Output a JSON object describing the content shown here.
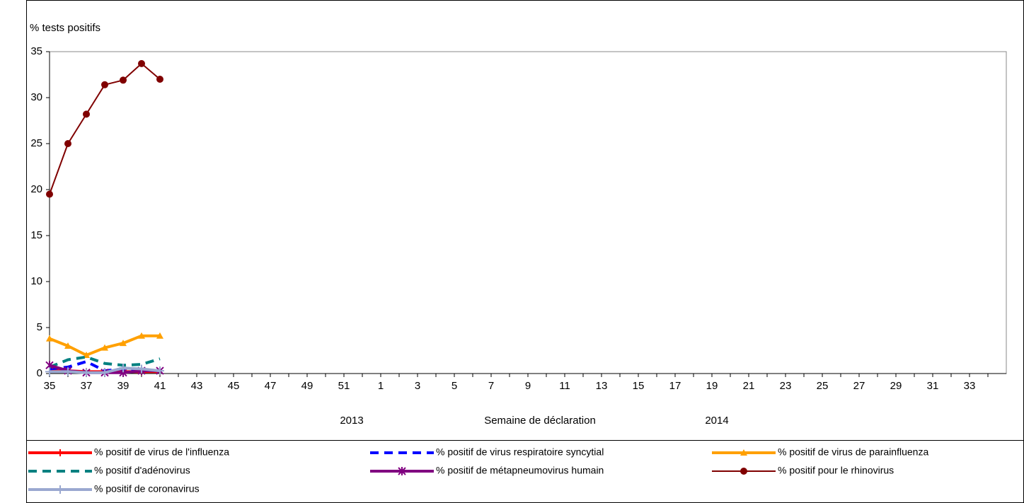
{
  "chart_data": {
    "type": "line",
    "title": "% tests positifs",
    "x_label": "Semaine de déclaration",
    "annotations": [
      "2013",
      "2014"
    ],
    "categories": [
      "35",
      null,
      "37",
      null,
      "39",
      null,
      "41",
      null,
      "43",
      null,
      "45",
      null,
      "47",
      null,
      "49",
      null,
      "51",
      null,
      "1",
      null,
      "3",
      null,
      "5",
      null,
      "7",
      null,
      "9",
      null,
      "11",
      null,
      "13",
      null,
      "15",
      null,
      "17",
      null,
      "19",
      null,
      "21",
      null,
      "23",
      null,
      "25",
      null,
      "27",
      null,
      "29",
      null,
      "31",
      null,
      "33",
      null
    ],
    "ylim": [
      0,
      35
    ],
    "yticks": [
      0,
      5,
      10,
      15,
      20,
      25,
      30,
      35
    ],
    "series": [
      {
        "name": "% positif de virus de l'influenza",
        "color": "#ff0000",
        "dashed": false,
        "marker": "dash",
        "line_width": 4,
        "values": [
          0.3,
          0.3,
          0.2,
          0.2,
          0.2,
          0.2,
          0.2,
          null,
          null,
          null,
          null,
          null,
          null,
          null,
          null,
          null,
          null,
          null,
          null,
          null,
          null,
          null,
          null,
          null,
          null,
          null,
          null,
          null,
          null,
          null,
          null,
          null,
          null,
          null,
          null,
          null,
          null,
          null,
          null,
          null,
          null,
          null,
          null,
          null,
          null,
          null,
          null,
          null,
          null,
          null,
          null,
          null
        ]
      },
      {
        "name": "% positif de virus respiratoire syncytial",
        "color": "#0000ff",
        "dashed": true,
        "marker": "none",
        "line_width": 4,
        "values": [
          0.5,
          0.7,
          1.3,
          0.3,
          0.5,
          0.4,
          0.3,
          null,
          null,
          null,
          null,
          null,
          null,
          null,
          null,
          null,
          null,
          null,
          null,
          null,
          null,
          null,
          null,
          null,
          null,
          null,
          null,
          null,
          null,
          null,
          null,
          null,
          null,
          null,
          null,
          null,
          null,
          null,
          null,
          null,
          null,
          null,
          null,
          null,
          null,
          null,
          null,
          null,
          null,
          null,
          null,
          null
        ]
      },
      {
        "name": "% positif de virus de parainfluenza",
        "color": "#ffa000",
        "dashed": false,
        "marker": "triangle",
        "line_width": 4,
        "values": [
          3.8,
          3.0,
          2.0,
          2.8,
          3.3,
          4.1,
          4.1,
          null,
          null,
          null,
          null,
          null,
          null,
          null,
          null,
          null,
          null,
          null,
          null,
          null,
          null,
          null,
          null,
          null,
          null,
          null,
          null,
          null,
          null,
          null,
          null,
          null,
          null,
          null,
          null,
          null,
          null,
          null,
          null,
          null,
          null,
          null,
          null,
          null,
          null,
          null,
          null,
          null,
          null,
          null,
          null,
          null
        ]
      },
      {
        "name": "% positif d'adénovirus",
        "color": "#008080",
        "dashed": true,
        "marker": "none",
        "line_width": 4,
        "values": [
          0.7,
          1.5,
          1.8,
          1.1,
          0.9,
          1.0,
          1.6,
          null,
          null,
          null,
          null,
          null,
          null,
          null,
          null,
          null,
          null,
          null,
          null,
          null,
          null,
          null,
          null,
          null,
          null,
          null,
          null,
          null,
          null,
          null,
          null,
          null,
          null,
          null,
          null,
          null,
          null,
          null,
          null,
          null,
          null,
          null,
          null,
          null,
          null,
          null,
          null,
          null,
          null,
          null,
          null,
          null
        ]
      },
      {
        "name": "% positif de métapneumovirus humain",
        "color": "#800080",
        "dashed": false,
        "marker": "star",
        "line_width": 4,
        "values": [
          0.9,
          0.3,
          0.1,
          0.1,
          0.1,
          0.3,
          0.3,
          null,
          null,
          null,
          null,
          null,
          null,
          null,
          null,
          null,
          null,
          null,
          null,
          null,
          null,
          null,
          null,
          null,
          null,
          null,
          null,
          null,
          null,
          null,
          null,
          null,
          null,
          null,
          null,
          null,
          null,
          null,
          null,
          null,
          null,
          null,
          null,
          null,
          null,
          null,
          null,
          null,
          null,
          null,
          null,
          null
        ]
      },
      {
        "name": "% positif pour le rhinovirus",
        "color": "#800000",
        "dashed": false,
        "marker": "circle",
        "line_width": 2,
        "values": [
          19.5,
          25.0,
          28.2,
          31.4,
          31.9,
          33.7,
          32.0,
          null,
          null,
          null,
          null,
          null,
          null,
          null,
          null,
          null,
          null,
          null,
          null,
          null,
          null,
          null,
          null,
          null,
          null,
          null,
          null,
          null,
          null,
          null,
          null,
          null,
          null,
          null,
          null,
          null,
          null,
          null,
          null,
          null,
          null,
          null,
          null,
          null,
          null,
          null,
          null,
          null,
          null,
          null,
          null,
          null
        ]
      },
      {
        "name": "% positif de coronavirus",
        "color": "#9aa8d0",
        "dashed": false,
        "marker": "plus",
        "line_width": 4,
        "values": [
          0.2,
          0.2,
          0.1,
          0.1,
          0.6,
          0.5,
          0.3,
          null,
          null,
          null,
          null,
          null,
          null,
          null,
          null,
          null,
          null,
          null,
          null,
          null,
          null,
          null,
          null,
          null,
          null,
          null,
          null,
          null,
          null,
          null,
          null,
          null,
          null,
          null,
          null,
          null,
          null,
          null,
          null,
          null,
          null,
          null,
          null,
          null,
          null,
          null,
          null,
          null,
          null,
          null,
          null,
          null
        ]
      }
    ]
  }
}
